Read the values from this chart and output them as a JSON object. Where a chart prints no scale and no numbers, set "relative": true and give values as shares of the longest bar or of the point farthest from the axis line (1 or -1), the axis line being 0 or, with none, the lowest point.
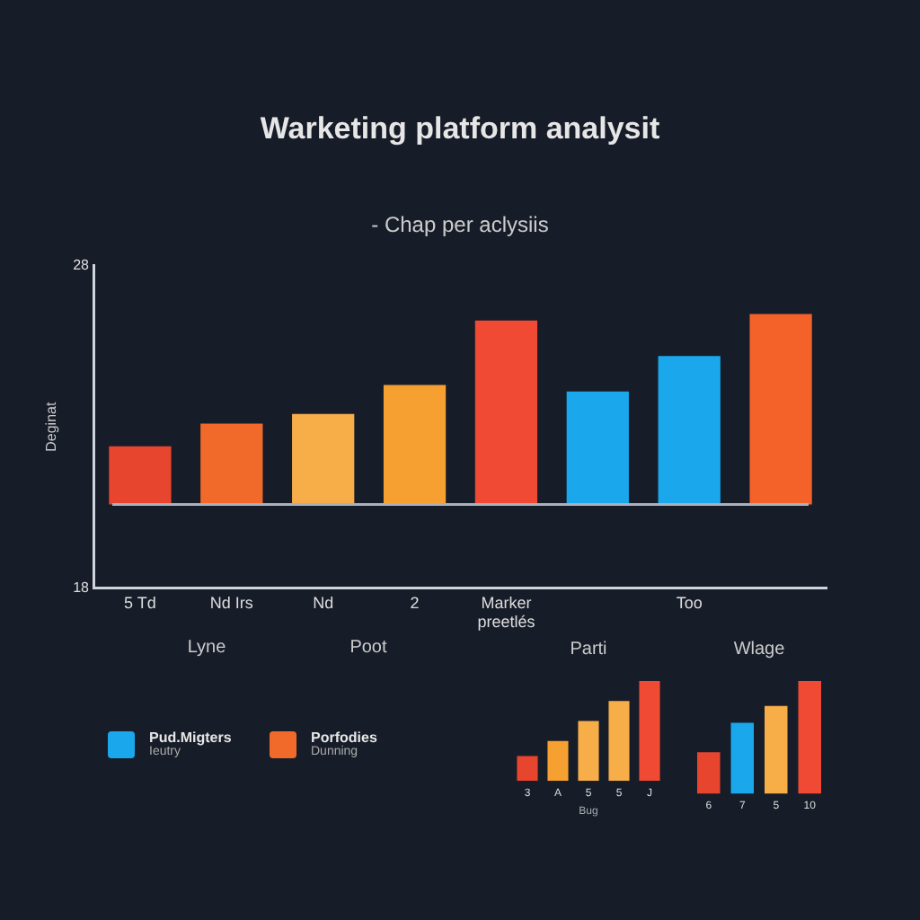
{
  "chart_data": [
    {
      "type": "bar",
      "title": "Warketing platform analysit",
      "subtitle": "- Chap per aclysiis",
      "ylabel": "Deginat",
      "categories": [
        "5 Td",
        "Nd Irs",
        "Nd",
        "2",
        "Marker preetlés",
        null,
        "Too",
        null
      ],
      "values": [
        1.8,
        2.5,
        2.8,
        3.7,
        5.7,
        3.5,
        4.6,
        5.9
      ],
      "base": [
        20.6,
        20.6,
        20.6,
        20.6,
        20.6,
        20.6,
        20.6,
        20.6
      ],
      "colors": [
        "#e8452f",
        "#f26a2a",
        "#f7ae48",
        "#f5a030",
        "#f04a35",
        "#1aa7ec",
        "#1aa7ec",
        "#f4622a"
      ],
      "ylim": [
        18,
        28
      ],
      "yticks": [
        18,
        28
      ],
      "ref_lines": [
        {
          "axis": "y",
          "value": 20.6,
          "color": "#aab0bc"
        }
      ],
      "grid": false,
      "legend": false
    },
    {
      "type": "other",
      "title": "Lyne",
      "annotations": [
        "Pud.Migters",
        "Ieutry"
      ]
    },
    {
      "type": "other",
      "title": "Poot",
      "annotations": [
        "Porfodies",
        "Dunning"
      ]
    },
    {
      "type": "bar",
      "title": "Parti",
      "xlabel": "Bug",
      "relative": true,
      "categories": [
        "3",
        "A",
        "5",
        "5",
        "J"
      ],
      "values": [
        0.25,
        0.4,
        0.6,
        0.8,
        1
      ],
      "colors": [
        "#e8452f",
        "#f5a030",
        "#f7ae48",
        "#f7ae48",
        "#f04a35"
      ],
      "grid": false,
      "legend": false
    },
    {
      "type": "bar",
      "title": "Wlage",
      "relative": true,
      "categories": [
        "6",
        "7",
        "5",
        "10"
      ],
      "values": [
        0.37,
        0.63,
        0.78,
        1
      ],
      "colors": [
        "#e8452f",
        "#1aa7ec",
        "#f7ae48",
        "#f04a35"
      ],
      "grid": false,
      "legend": false
    }
  ]
}
